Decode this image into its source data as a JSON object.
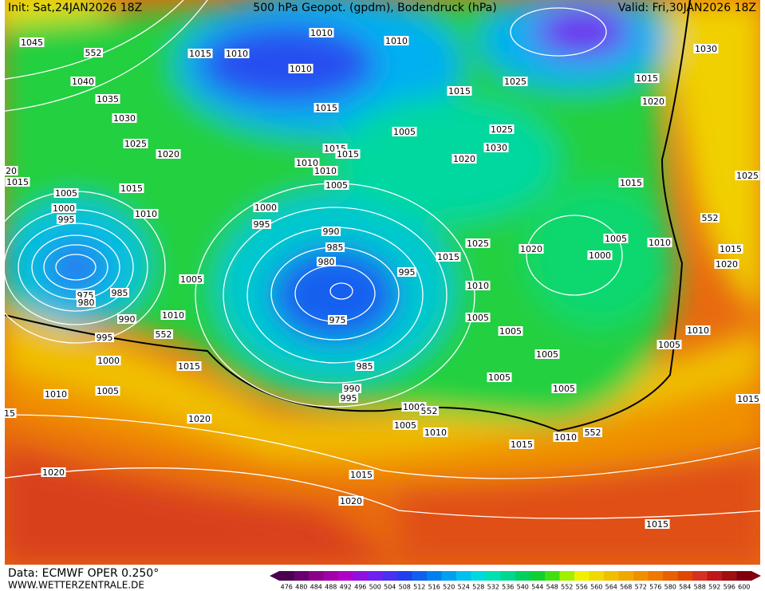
{
  "header": {
    "init": "Init: Sat,24JAN2026 18Z",
    "title": "500 hPa Geopot. (gpdm), Bodendruck (hPa)",
    "valid": "Valid: Fri,30JAN2026 18Z"
  },
  "footer": {
    "data": "Data: ECMWF OPER 0.250°",
    "site": "WWW.WETTERZENTRALE.DE"
  },
  "color_scale": {
    "labels": [
      476,
      480,
      484,
      488,
      492,
      496,
      500,
      504,
      508,
      512,
      516,
      520,
      524,
      528,
      532,
      536,
      540,
      544,
      548,
      552,
      556,
      560,
      564,
      568,
      572,
      576,
      580,
      584,
      588,
      592,
      596,
      600
    ],
    "colors": [
      "#4b0050",
      "#6a006f",
      "#8b008b",
      "#a000a8",
      "#b000c8",
      "#9010e0",
      "#7020f0",
      "#4a30f0",
      "#2040f0",
      "#1060f0",
      "#0080f0",
      "#00a0f0",
      "#00c0f0",
      "#00d8e0",
      "#00e0b0",
      "#00d890",
      "#00d060",
      "#10d030",
      "#40e010",
      "#a0f000",
      "#f0f000",
      "#f0d800",
      "#f0c000",
      "#f0a800",
      "#f09000",
      "#f07800",
      "#e86000",
      "#e04800",
      "#d83020",
      "#c01818",
      "#a01010",
      "#800010"
    ]
  },
  "isobar_labels": [
    "1045",
    "552",
    "1040",
    "1035",
    "1030",
    "1025",
    "1020",
    "20",
    "1015",
    "1005",
    "1015",
    "1000",
    "995",
    "1010",
    "1015",
    "1010",
    "1010",
    "1010",
    "1010",
    "1015",
    "1025",
    "1030",
    "1015",
    "1020",
    "1015",
    "1005",
    "1025",
    "1030",
    "1015",
    "1015",
    "1010",
    "1010",
    "1020",
    "1005",
    "1015",
    "1025",
    "1000",
    "995",
    "990",
    "985",
    "980",
    "1025",
    "1020",
    "1015",
    "1005",
    "1010",
    "1000",
    "552",
    "1015",
    "1020",
    "1005",
    "995",
    "1010",
    "985",
    "975",
    "980",
    "990",
    "975",
    "1010",
    "1005",
    "995",
    "552",
    "1005",
    "1010",
    "1005",
    "1005",
    "1000",
    "1015",
    "985",
    "1005",
    "1005",
    "1010",
    "990",
    "995",
    "1005",
    "1015",
    "15",
    "1000",
    "552",
    "1020",
    "1005",
    "1010",
    "1010",
    "552",
    "1015",
    "1020",
    "1015",
    "1020",
    "1015"
  ]
}
